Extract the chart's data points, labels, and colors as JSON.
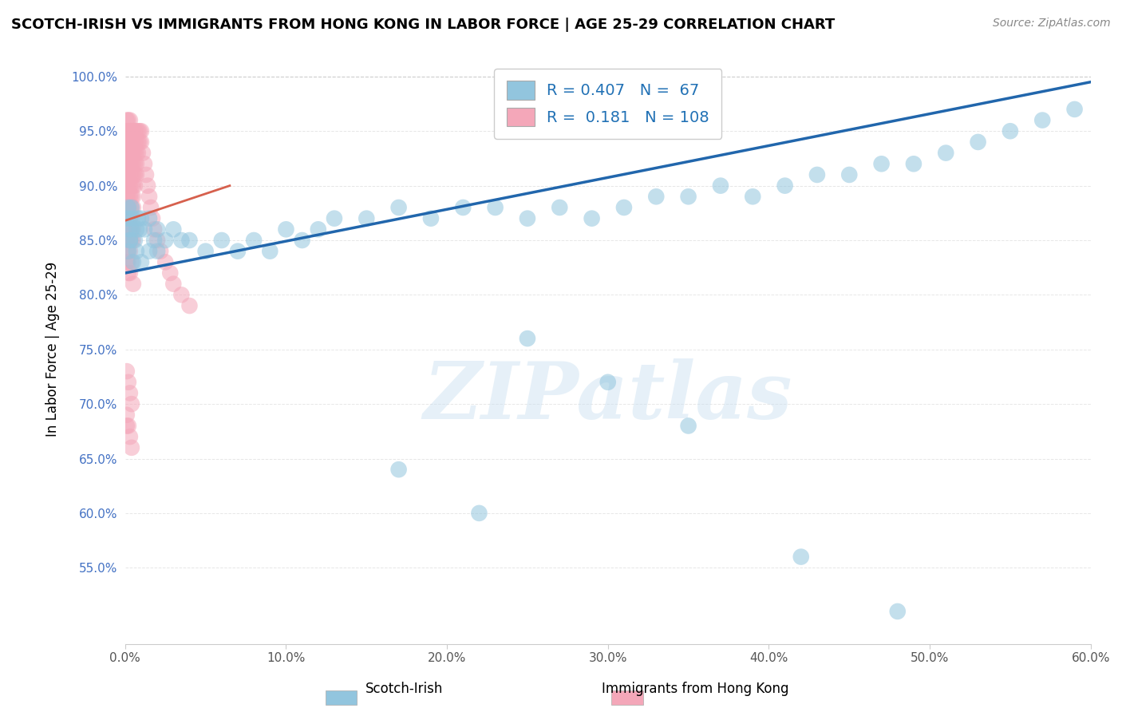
{
  "title": "SCOTCH-IRISH VS IMMIGRANTS FROM HONG KONG IN LABOR FORCE | AGE 25-29 CORRELATION CHART",
  "source": "Source: ZipAtlas.com",
  "ylabel": "In Labor Force | Age 25-29",
  "xlim": [
    0.0,
    0.6
  ],
  "ylim": [
    0.48,
    1.02
  ],
  "yticks": [
    0.55,
    0.6,
    0.65,
    0.7,
    0.75,
    0.8,
    0.85,
    0.9,
    0.95,
    1.0
  ],
  "ytick_labels": [
    "55.0%",
    "60.0%",
    "65.0%",
    "70.0%",
    "75.0%",
    "80.0%",
    "85.0%",
    "90.0%",
    "95.0%",
    "100.0%"
  ],
  "xticks": [
    0.0,
    0.1,
    0.2,
    0.3,
    0.4,
    0.5,
    0.6
  ],
  "xtick_labels": [
    "0.0%",
    "10.0%",
    "20.0%",
    "30.0%",
    "40.0%",
    "50.0%",
    "60.0%"
  ],
  "blue_color": "#92c5de",
  "pink_color": "#f4a7b9",
  "blue_line_color": "#2166ac",
  "pink_line_color": "#d6604d",
  "R_blue": 0.407,
  "N_blue": 67,
  "R_pink": 0.181,
  "N_pink": 108,
  "legend_label_blue": "Scotch-Irish",
  "legend_label_pink": "Immigrants from Hong Kong",
  "watermark": "ZIPatlas",
  "blue_x": [
    0.001,
    0.002,
    0.002,
    0.003,
    0.003,
    0.004,
    0.004,
    0.005,
    0.006,
    0.007,
    0.008,
    0.009,
    0.01,
    0.012,
    0.015,
    0.018,
    0.02,
    0.025,
    0.03,
    0.035,
    0.04,
    0.05,
    0.06,
    0.07,
    0.08,
    0.09,
    0.1,
    0.11,
    0.12,
    0.13,
    0.15,
    0.17,
    0.19,
    0.21,
    0.23,
    0.25,
    0.27,
    0.29,
    0.31,
    0.33,
    0.35,
    0.37,
    0.39,
    0.41,
    0.43,
    0.45,
    0.47,
    0.49,
    0.51,
    0.53,
    0.55,
    0.57,
    0.59,
    0.002,
    0.003,
    0.005,
    0.007,
    0.01,
    0.015,
    0.02,
    0.3,
    0.25,
    0.35,
    0.17,
    0.22,
    0.42,
    0.48
  ],
  "blue_y": [
    0.87,
    0.88,
    0.86,
    0.85,
    0.87,
    0.88,
    0.86,
    0.87,
    0.85,
    0.86,
    0.87,
    0.86,
    0.87,
    0.86,
    0.87,
    0.85,
    0.86,
    0.85,
    0.86,
    0.85,
    0.85,
    0.84,
    0.85,
    0.84,
    0.85,
    0.84,
    0.86,
    0.85,
    0.86,
    0.87,
    0.87,
    0.88,
    0.87,
    0.88,
    0.88,
    0.87,
    0.88,
    0.87,
    0.88,
    0.89,
    0.89,
    0.9,
    0.89,
    0.9,
    0.91,
    0.91,
    0.92,
    0.92,
    0.93,
    0.94,
    0.95,
    0.96,
    0.97,
    0.84,
    0.85,
    0.83,
    0.84,
    0.83,
    0.84,
    0.84,
    0.72,
    0.76,
    0.68,
    0.64,
    0.6,
    0.56,
    0.51
  ],
  "pink_x": [
    0.001,
    0.001,
    0.001,
    0.001,
    0.001,
    0.001,
    0.001,
    0.001,
    0.001,
    0.001,
    0.002,
    0.002,
    0.002,
    0.002,
    0.002,
    0.002,
    0.002,
    0.002,
    0.002,
    0.002,
    0.003,
    0.003,
    0.003,
    0.003,
    0.003,
    0.003,
    0.003,
    0.003,
    0.003,
    0.003,
    0.004,
    0.004,
    0.004,
    0.004,
    0.004,
    0.004,
    0.004,
    0.004,
    0.004,
    0.005,
    0.005,
    0.005,
    0.005,
    0.005,
    0.005,
    0.005,
    0.005,
    0.006,
    0.006,
    0.006,
    0.006,
    0.006,
    0.006,
    0.007,
    0.007,
    0.007,
    0.007,
    0.007,
    0.008,
    0.008,
    0.008,
    0.009,
    0.009,
    0.01,
    0.01,
    0.011,
    0.012,
    0.013,
    0.014,
    0.015,
    0.016,
    0.017,
    0.018,
    0.02,
    0.022,
    0.025,
    0.028,
    0.03,
    0.035,
    0.04,
    0.001,
    0.001,
    0.002,
    0.002,
    0.003,
    0.003,
    0.004,
    0.004,
    0.005,
    0.005,
    0.001,
    0.002,
    0.003,
    0.002,
    0.001,
    0.004,
    0.002,
    0.003,
    0.005,
    0.001,
    0.001,
    0.002,
    0.003,
    0.004,
    0.001,
    0.002,
    0.003,
    0.004
  ],
  "pink_y": [
    0.96,
    0.95,
    0.94,
    0.93,
    0.92,
    0.91,
    0.9,
    0.89,
    0.88,
    0.87,
    0.96,
    0.95,
    0.94,
    0.93,
    0.92,
    0.91,
    0.9,
    0.89,
    0.88,
    0.87,
    0.96,
    0.95,
    0.94,
    0.93,
    0.92,
    0.91,
    0.9,
    0.89,
    0.88,
    0.87,
    0.95,
    0.94,
    0.93,
    0.92,
    0.91,
    0.9,
    0.89,
    0.88,
    0.87,
    0.95,
    0.94,
    0.93,
    0.92,
    0.91,
    0.9,
    0.89,
    0.88,
    0.95,
    0.94,
    0.93,
    0.92,
    0.91,
    0.9,
    0.95,
    0.94,
    0.93,
    0.92,
    0.91,
    0.95,
    0.94,
    0.93,
    0.95,
    0.94,
    0.95,
    0.94,
    0.93,
    0.92,
    0.91,
    0.9,
    0.89,
    0.88,
    0.87,
    0.86,
    0.85,
    0.84,
    0.83,
    0.82,
    0.81,
    0.8,
    0.79,
    0.86,
    0.85,
    0.86,
    0.85,
    0.86,
    0.85,
    0.86,
    0.85,
    0.86,
    0.85,
    0.84,
    0.84,
    0.84,
    0.83,
    0.83,
    0.83,
    0.82,
    0.82,
    0.81,
    0.68,
    0.73,
    0.72,
    0.71,
    0.7,
    0.69,
    0.68,
    0.67,
    0.66
  ]
}
